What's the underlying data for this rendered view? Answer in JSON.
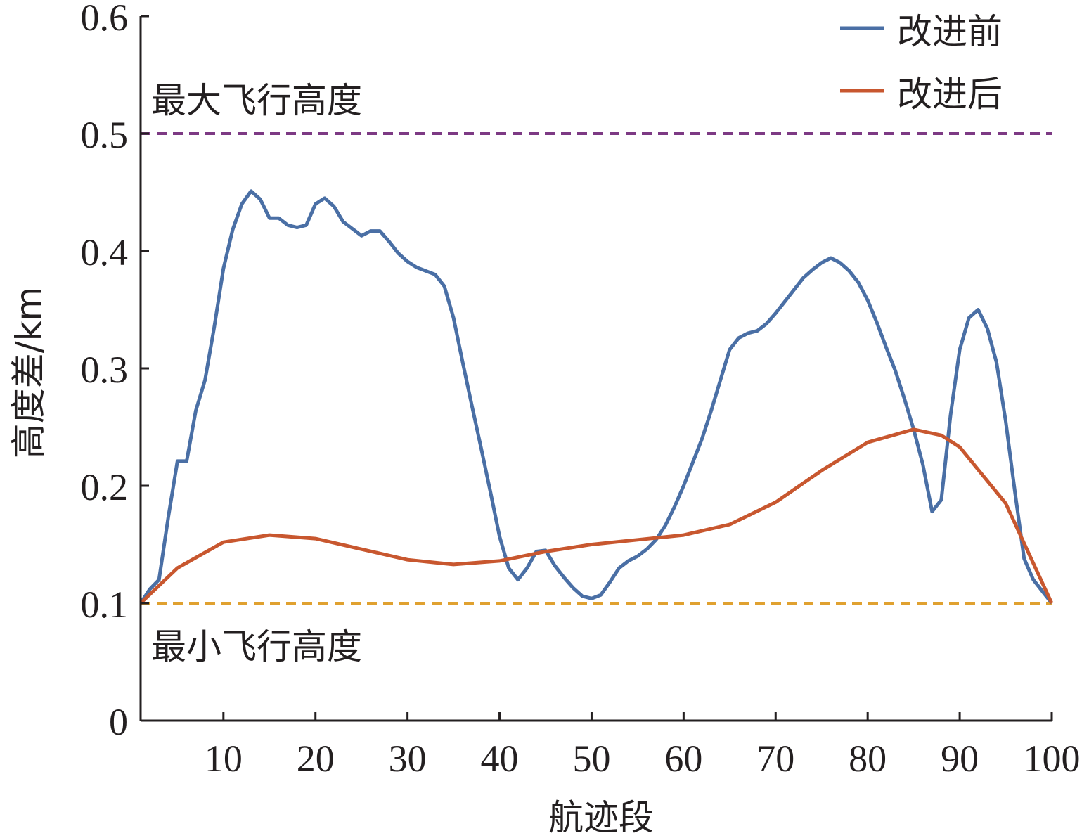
{
  "chart_data": {
    "type": "line",
    "xlabel": "航迹段",
    "ylabel": "高度差/km",
    "xlim": [
      1,
      100
    ],
    "ylim": [
      0,
      0.6
    ],
    "x_ticks": [
      10,
      20,
      30,
      40,
      50,
      60,
      70,
      80,
      90,
      100
    ],
    "x_tick_labels": [
      "10",
      "20",
      "30",
      "40",
      "50",
      "60",
      "70",
      "80",
      "90",
      "100"
    ],
    "y_ticks": [
      0,
      0.1,
      0.2,
      0.3,
      0.4,
      0.5,
      0.6
    ],
    "y_tick_labels": [
      "0",
      "0.1",
      "0.2",
      "0.3",
      "0.4",
      "0.5",
      "0.6"
    ],
    "grid": false,
    "legend_position": "top-right",
    "series": [
      {
        "name": "改进前",
        "color": "#4a6fa5",
        "x": [
          1,
          2,
          3,
          4,
          5,
          6,
          7,
          8,
          9,
          10,
          11,
          12,
          13,
          14,
          15,
          16,
          17,
          18,
          19,
          20,
          21,
          22,
          23,
          24,
          25,
          26,
          27,
          28,
          29,
          30,
          31,
          32,
          33,
          34,
          35,
          36,
          37,
          38,
          39,
          40,
          41,
          42,
          43,
          44,
          45,
          46,
          47,
          48,
          49,
          50,
          51,
          52,
          53,
          54,
          55,
          56,
          57,
          58,
          59,
          60,
          61,
          62,
          63,
          64,
          65,
          66,
          67,
          68,
          69,
          70,
          71,
          72,
          73,
          74,
          75,
          76,
          77,
          78,
          79,
          80,
          81,
          82,
          83,
          84,
          85,
          86,
          87,
          88,
          89,
          90,
          91,
          92,
          93,
          94,
          95,
          96,
          97,
          98,
          99,
          100
        ],
        "y": [
          0.1,
          0.112,
          0.12,
          0.173,
          0.221,
          0.221,
          0.264,
          0.29,
          0.335,
          0.385,
          0.418,
          0.44,
          0.451,
          0.444,
          0.428,
          0.428,
          0.422,
          0.42,
          0.422,
          0.44,
          0.445,
          0.438,
          0.425,
          0.419,
          0.413,
          0.417,
          0.417,
          0.408,
          0.398,
          0.391,
          0.386,
          0.383,
          0.38,
          0.37,
          0.343,
          0.305,
          0.268,
          0.232,
          0.195,
          0.157,
          0.13,
          0.12,
          0.13,
          0.144,
          0.145,
          0.132,
          0.122,
          0.113,
          0.106,
          0.104,
          0.107,
          0.118,
          0.13,
          0.136,
          0.14,
          0.146,
          0.154,
          0.166,
          0.182,
          0.2,
          0.22,
          0.24,
          0.264,
          0.29,
          0.316,
          0.326,
          0.33,
          0.332,
          0.338,
          0.347,
          0.357,
          0.367,
          0.377,
          0.384,
          0.39,
          0.394,
          0.39,
          0.383,
          0.373,
          0.358,
          0.339,
          0.318,
          0.298,
          0.274,
          0.248,
          0.218,
          0.178,
          0.188,
          0.26,
          0.316,
          0.343,
          0.35,
          0.334,
          0.305,
          0.255,
          0.195,
          0.138,
          0.12,
          0.11,
          0.1
        ]
      },
      {
        "name": "改进后",
        "color": "#c8572f",
        "x": [
          1,
          5,
          10,
          15,
          20,
          25,
          30,
          35,
          40,
          45,
          50,
          55,
          60,
          65,
          70,
          75,
          80,
          85,
          88,
          90,
          95,
          100
        ],
        "y": [
          0.1,
          0.13,
          0.152,
          0.158,
          0.155,
          0.146,
          0.137,
          0.133,
          0.136,
          0.144,
          0.15,
          0.154,
          0.158,
          0.167,
          0.186,
          0.213,
          0.237,
          0.248,
          0.243,
          0.233,
          0.185,
          0.1
        ]
      }
    ],
    "reference_lines": [
      {
        "y": 0.5,
        "color": "#7d3a84",
        "style": "dashed",
        "label": "最大飞行高度"
      },
      {
        "y": 0.1,
        "color": "#e0a130",
        "style": "dashed",
        "label": "最小飞行高度"
      }
    ]
  }
}
